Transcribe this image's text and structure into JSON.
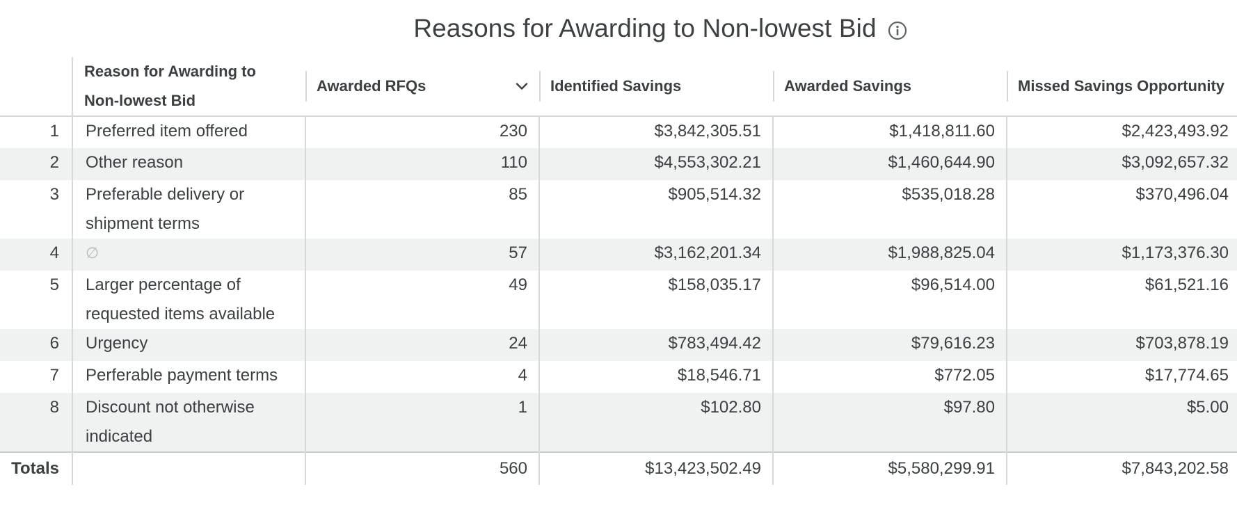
{
  "title": "Reasons for Awarding to Non-lowest Bid",
  "icons": {
    "info": "info-circle-icon",
    "sort": "chevron-down-icon",
    "null": "null-value-icon"
  },
  "colors": {
    "stripe": "#f0f1f1",
    "border": "#d6d8da",
    "text": "#3c4043"
  },
  "columns": {
    "reason": "Reason for Awarding to Non-lowest Bid",
    "rfqs": "Awarded RFQs",
    "identified": "Identified Savings",
    "awarded": "Awarded Savings",
    "missed": "Missed Savings Opportunity"
  },
  "rows": [
    {
      "index": "1",
      "reason": "Preferred item offered",
      "rfqs": "230",
      "identified": "$3,842,305.51",
      "awarded": "$1,418,811.60",
      "missed": "$2,423,493.92"
    },
    {
      "index": "2",
      "reason": "Other reason",
      "rfqs": "110",
      "identified": "$4,553,302.21",
      "awarded": "$1,460,644.90",
      "missed": "$3,092,657.32"
    },
    {
      "index": "3",
      "reason": "Preferable delivery or shipment terms",
      "rfqs": "85",
      "identified": "$905,514.32",
      "awarded": "$535,018.28",
      "missed": "$370,496.04"
    },
    {
      "index": "4",
      "reason": "∅",
      "rfqs": "57",
      "identified": "$3,162,201.34",
      "awarded": "$1,988,825.04",
      "missed": "$1,173,376.30"
    },
    {
      "index": "5",
      "reason": "Larger percentage of requested items available",
      "rfqs": "49",
      "identified": "$158,035.17",
      "awarded": "$96,514.00",
      "missed": "$61,521.16"
    },
    {
      "index": "6",
      "reason": "Urgency",
      "rfqs": "24",
      "identified": "$783,494.42",
      "awarded": "$79,616.23",
      "missed": "$703,878.19"
    },
    {
      "index": "7",
      "reason": "Perferable payment terms",
      "rfqs": "4",
      "identified": "$18,546.71",
      "awarded": "$772.05",
      "missed": "$17,774.65"
    },
    {
      "index": "8",
      "reason": "Discount not otherwise indicated",
      "rfqs": "1",
      "identified": "$102.80",
      "awarded": "$97.80",
      "missed": "$5.00"
    }
  ],
  "totals": {
    "label": "Totals",
    "rfqs": "560",
    "identified": "$13,423,502.49",
    "awarded": "$5,580,299.91",
    "missed": "$7,843,202.58"
  }
}
